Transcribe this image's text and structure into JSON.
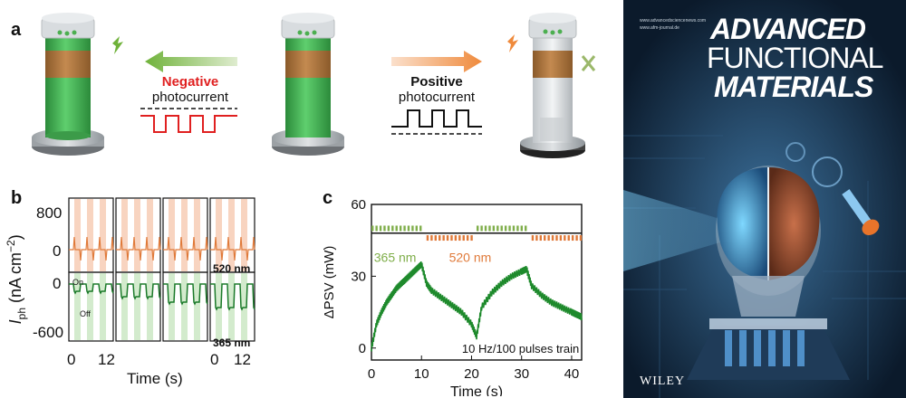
{
  "panel_a": {
    "letter": "a",
    "negative": {
      "title": "Negative",
      "subtitle": "photocurrent"
    },
    "positive": {
      "title": "Positive",
      "subtitle": "photocurrent"
    }
  },
  "panel_b": {
    "letter": "b",
    "ylabel_main": "I",
    "ylabel_sub": "ph",
    "ylabel_unit": " (nA cm",
    "ylabel_exp": "−2",
    "ylabel_end": ")",
    "yticks": [
      "800",
      "0",
      "0",
      "-600"
    ],
    "xticks": [
      "0",
      "12",
      "0",
      "12"
    ],
    "xlabel": "Time (s)",
    "label_520": "520 nm",
    "label_365": "365 nm",
    "label_on": "On",
    "label_off": "Off"
  },
  "panel_c": {
    "letter": "c",
    "label_365": "365 nm",
    "label_520": "520 nm",
    "annotation": "10 Hz/100 pulses train"
  },
  "cover": {
    "journal_line1": "ADVANCED",
    "journal_line2": "FUNCTIONAL",
    "journal_line3": "MATERIALS",
    "publisher": "WILEY",
    "small_line1": "www.afm-journal.de",
    "small_line2": "www.advancedsciencenews.com"
  },
  "colors": {
    "green": "#2e9a3d",
    "orange": "#e07a3a",
    "red": "#e02020",
    "olive": "#7fae4a"
  },
  "chart_data": {
    "type": "line",
    "title": "",
    "xlabel": "Time (s)",
    "ylabel": "ΔPSV (mW)",
    "xlim": [
      0,
      42
    ],
    "ylim": [
      -5,
      60
    ],
    "xticks": [
      0,
      10,
      20,
      30,
      40
    ],
    "yticks": [
      0,
      30,
      60
    ],
    "series": [
      {
        "x": [
          0,
          1,
          2,
          3,
          4,
          5,
          6,
          7,
          8,
          9,
          10,
          11,
          12,
          14,
          16,
          18,
          20,
          21,
          22,
          24,
          26,
          28,
          30,
          31,
          32,
          34,
          36,
          38,
          40,
          41,
          42
        ],
        "y": [
          0,
          10,
          15,
          19,
          22,
          25,
          27,
          29,
          31,
          33,
          35,
          27,
          24,
          21,
          18,
          15,
          10,
          5,
          17,
          23,
          27,
          30,
          32,
          33,
          26,
          22,
          19,
          17,
          15,
          14,
          13
        ]
      }
    ]
  }
}
